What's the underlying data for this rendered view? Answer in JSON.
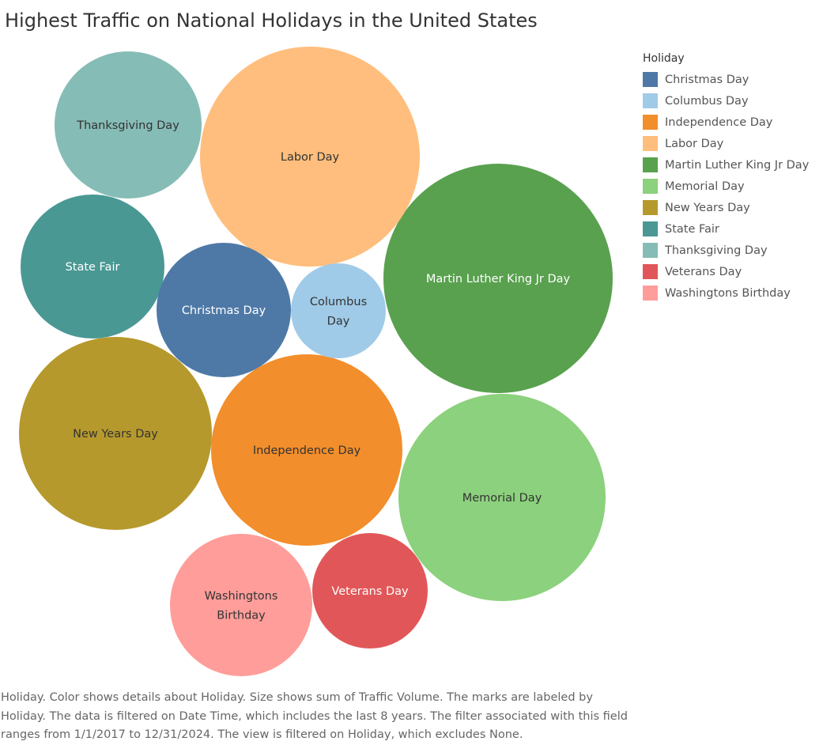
{
  "title": "Highest Traffic on National Holidays in the United States",
  "chart_data": {
    "type": "packed_bubble",
    "title": "Highest Traffic on National Holidays in the United States",
    "size_measure": "Traffic Volume",
    "legend": {
      "title": "Holiday",
      "placement": "right",
      "items": [
        {
          "label": "Christmas Day",
          "color": "#4e79a7"
        },
        {
          "label": "Columbus Day",
          "color": "#a0cbe8"
        },
        {
          "label": "Independence Day",
          "color": "#f28e2b"
        },
        {
          "label": "Labor Day",
          "color": "#ffbe7d"
        },
        {
          "label": "Martin Luther King Jr Day",
          "color": "#59a14f"
        },
        {
          "label": "Memorial Day",
          "color": "#8cd17d"
        },
        {
          "label": "New Years Day",
          "color": "#b6992d"
        },
        {
          "label": "State Fair",
          "color": "#499894"
        },
        {
          "label": "Thanksgiving Day",
          "color": "#86bcb6"
        },
        {
          "label": "Veterans Day",
          "color": "#e15759"
        },
        {
          "label": "Washingtons Birthday",
          "color": "#ff9d9a"
        }
      ]
    },
    "bubbles": [
      {
        "holiday": "Martin Luther King Jr Day",
        "label_lines": [
          "Martin Luther King Jr Day"
        ],
        "relative_size": 1.0,
        "color": "#59a14f",
        "label_color": "#ffffff"
      },
      {
        "holiday": "Labor Day",
        "label_lines": [
          "Labor Day"
        ],
        "relative_size": 0.92,
        "color": "#ffbe7d",
        "label_color": "#333333"
      },
      {
        "holiday": "Memorial Day",
        "label_lines": [
          "Memorial Day"
        ],
        "relative_size": 0.82,
        "color": "#8cd17d",
        "label_color": "#333333"
      },
      {
        "holiday": "Independence Day",
        "label_lines": [
          "Independence Day"
        ],
        "relative_size": 0.7,
        "color": "#f28e2b",
        "label_color": "#333333"
      },
      {
        "holiday": "New Years Day",
        "label_lines": [
          "New Years Day"
        ],
        "relative_size": 0.71,
        "color": "#b6992d",
        "label_color": "#333333"
      },
      {
        "holiday": "Thanksgiving Day",
        "label_lines": [
          "Thanksgiving Day"
        ],
        "relative_size": 0.41,
        "color": "#86bcb6",
        "label_color": "#333333"
      },
      {
        "holiday": "State Fair",
        "label_lines": [
          "State Fair"
        ],
        "relative_size": 0.39,
        "color": "#499894",
        "label_color": "#ffffff"
      },
      {
        "holiday": "Christmas Day",
        "label_lines": [
          "Christmas Day"
        ],
        "relative_size": 0.34,
        "color": "#4e79a7",
        "label_color": "#ffffff"
      },
      {
        "holiday": "Washingtons Birthday",
        "label_lines": [
          "Washingtons",
          "Birthday"
        ],
        "relative_size": 0.39,
        "color": "#ff9d9a",
        "label_color": "#333333"
      },
      {
        "holiday": "Veterans Day",
        "label_lines": [
          "Veterans Day"
        ],
        "relative_size": 0.25,
        "color": "#e15759",
        "label_color": "#ffffff"
      },
      {
        "holiday": "Columbus Day",
        "label_lines": [
          "Columbus",
          "Day"
        ],
        "relative_size": 0.17,
        "color": "#a0cbe8",
        "label_color": "#333333"
      }
    ]
  },
  "caption": "Holiday.  Color shows details about Holiday.  Size shows sum of Traffic Volume.  The marks are labeled by Holiday. The data is filtered on Date Time, which includes the last 8 years. The filter associated with this field ranges from 1/1/2017 to 12/31/2024. The view is filtered on Holiday, which excludes None."
}
